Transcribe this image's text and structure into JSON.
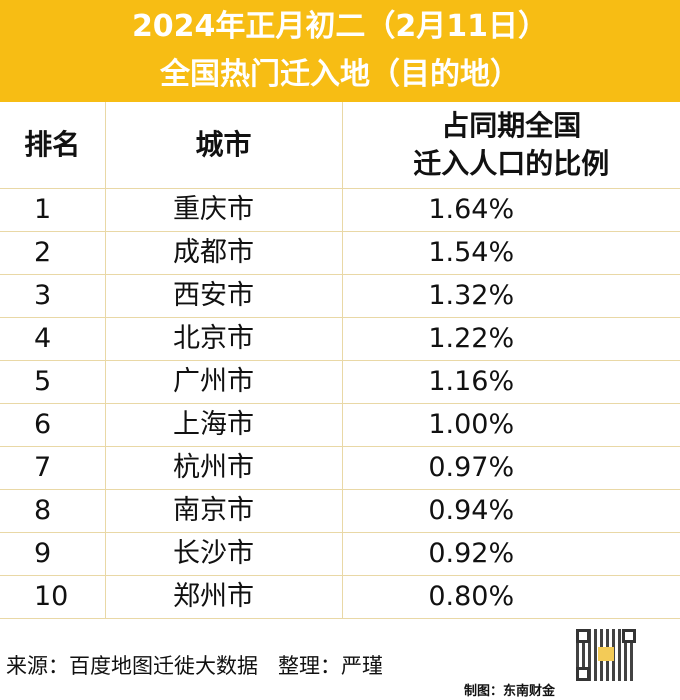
{
  "header": {
    "title_line1": "2024年正月初二（2月11日）",
    "title_line2": "全国热门迁入地（目的地）"
  },
  "colors": {
    "header_bg": "#f7bd14",
    "header_text": "#ffffff",
    "grid_line": "#e9d8a6"
  },
  "table": {
    "columns": {
      "rank": "排名",
      "city": "城市",
      "share_line1": "占同期全国",
      "share_line2": "迁入人口的比例"
    },
    "rows": [
      {
        "rank": "1",
        "city": "重庆市",
        "share": "1.64%"
      },
      {
        "rank": "2",
        "city": "成都市",
        "share": "1.54%"
      },
      {
        "rank": "3",
        "city": "西安市",
        "share": "1.32%"
      },
      {
        "rank": "4",
        "city": "北京市",
        "share": "1.22%"
      },
      {
        "rank": "5",
        "city": "广州市",
        "share": "1.16%"
      },
      {
        "rank": "6",
        "city": "上海市",
        "share": "1.00%"
      },
      {
        "rank": "7",
        "city": "杭州市",
        "share": "0.97%"
      },
      {
        "rank": "8",
        "city": "南京市",
        "share": "0.94%"
      },
      {
        "rank": "9",
        "city": "长沙市",
        "share": "0.92%"
      },
      {
        "rank": "10",
        "city": "郑州市",
        "share": "0.80%"
      }
    ]
  },
  "footer": {
    "source": "来源：百度地图迁徙大数据",
    "editor": "整理：严瑾",
    "made_by": "制图：东南财金",
    "qr_icon": "qr-code-icon"
  }
}
